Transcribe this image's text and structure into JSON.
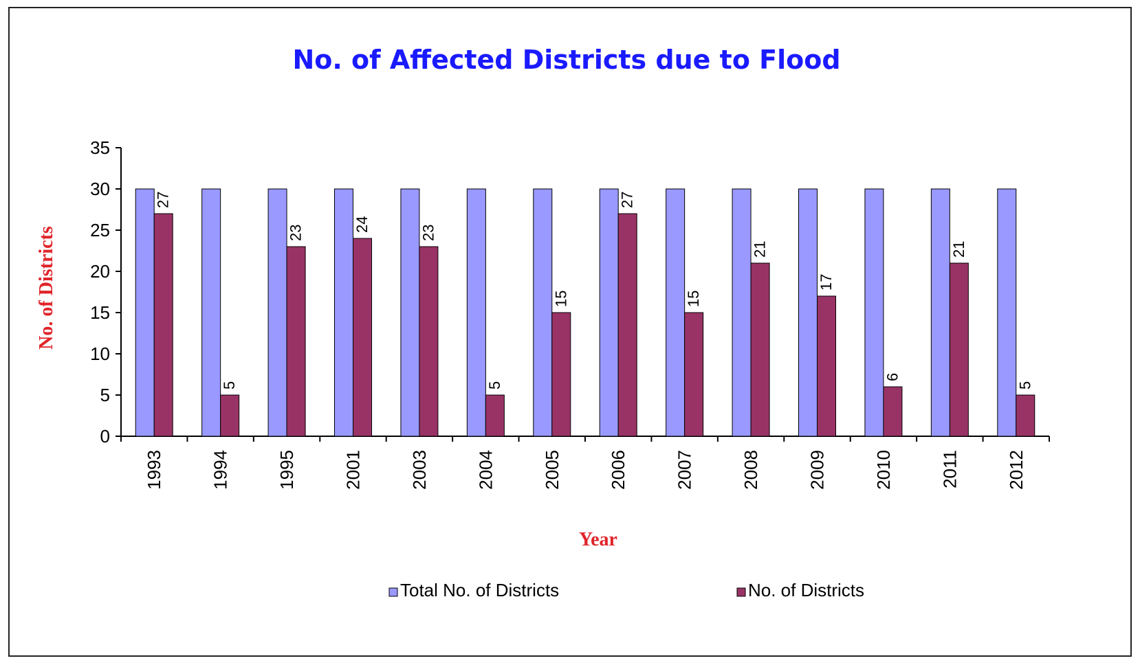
{
  "chart_data": {
    "type": "bar",
    "title": "No. of Affected Districts due to Flood",
    "xlabel": "Year",
    "ylabel": "No. of Districts",
    "categories": [
      "1993",
      "1994",
      "1995",
      "2001",
      "2003",
      "2004",
      "2005",
      "2006",
      "2007",
      "2008",
      "2009",
      "2010",
      "2011",
      "2012"
    ],
    "series": [
      {
        "name": "Total No. of Districts",
        "values": [
          30,
          30,
          30,
          30,
          30,
          30,
          30,
          30,
          30,
          30,
          30,
          30,
          30,
          30
        ],
        "color": "#9999ff",
        "show_labels": false
      },
      {
        "name": "No. of Districts",
        "values": [
          27,
          5,
          23,
          24,
          23,
          5,
          15,
          27,
          15,
          21,
          17,
          6,
          21,
          5
        ],
        "color": "#993366",
        "show_labels": true
      }
    ],
    "ylim": [
      0,
      35
    ],
    "yticks": [
      0,
      5,
      10,
      15,
      20,
      25,
      30,
      35
    ],
    "grid": false,
    "legend": "bottom",
    "title_color": "#1a1aff",
    "axis_title_color": "#e0242a"
  }
}
